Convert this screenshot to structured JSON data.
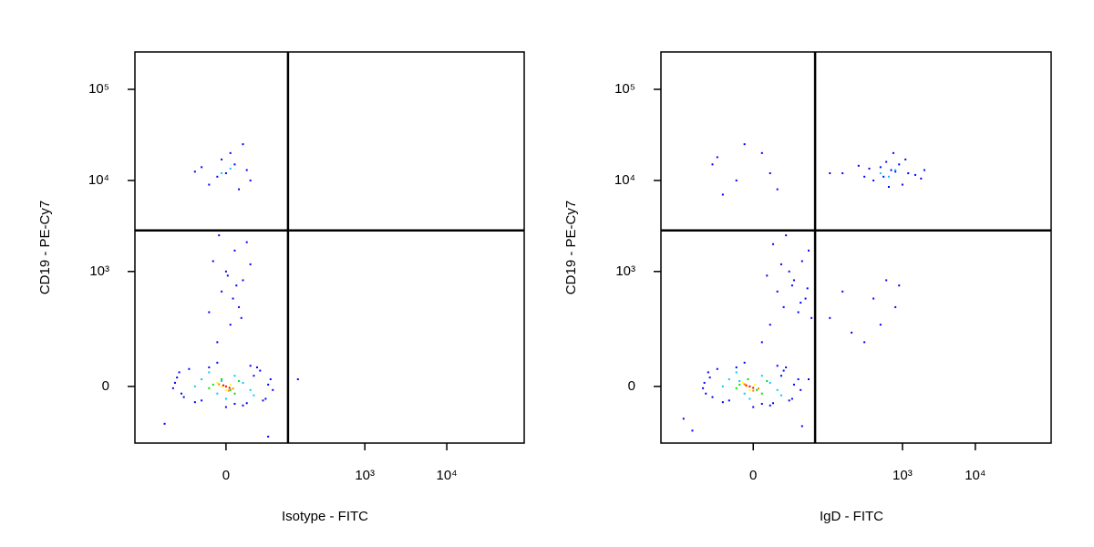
{
  "chart_data": [
    {
      "type": "scatter",
      "xlabel": "Isotype - FITC",
      "ylabel": "CD19 - PE-Cy7",
      "xscale": "asinh",
      "xscale_width": 40.5,
      "yscale": "asinh",
      "yscale_width": 110,
      "xlim": [
        -260,
        88000
      ],
      "ylim": [
        -217,
        257000
      ],
      "xticks": [
        0,
        {
          "value": 1000,
          "label": "10³"
        },
        {
          "value": 10000,
          "label": "10⁴"
        }
      ],
      "yticks": [
        0,
        {
          "value": 1000,
          "label": "10³"
        },
        {
          "value": 10000,
          "label": "10⁴"
        },
        {
          "value": 100000,
          "label": "10⁵"
        }
      ],
      "quadrant": {
        "x": 112,
        "y": 2830
      },
      "series": [
        {
          "color": "#0000ff",
          "x": [
            -80,
            -60,
            -70,
            -40,
            -20,
            10,
            30,
            50,
            65,
            70,
            -85,
            -50,
            20,
            45,
            60,
            -30,
            0,
            35,
            -65,
            55,
            40,
            -10,
            -75,
            25,
            -10,
            5,
            15,
            -5,
            20,
            0,
            -15,
            10,
            25,
            -20,
            8,
            2,
            30,
            -8,
            12,
            18,
            -20,
            0,
            10,
            -10,
            25,
            -30,
            5,
            15,
            -5,
            30,
            -40,
            20,
            150,
            -110,
            60
          ],
          "y": [
            10,
            -30,
            40,
            -45,
            55,
            -50,
            60,
            -40,
            20,
            -10,
            -5,
            50,
            -55,
            45,
            5,
            -40,
            -60,
            30,
            -20,
            -35,
            55,
            70,
            25,
            -48,
            150,
            250,
            400,
            600,
            800,
            1000,
            1300,
            1700,
            2100,
            350,
            500,
            900,
            1200,
            2500,
            700,
            300,
            9000,
            12000,
            15000,
            11000,
            13000,
            14000,
            20000,
            8000,
            17000,
            10000,
            12500,
            25000,
            20,
            -120,
            -180
          ]
        },
        {
          "color": "#00c8ff",
          "x": [
            -30,
            -10,
            10,
            30,
            -40,
            20,
            -20,
            0,
            35,
            -5,
            -5,
            5
          ],
          "y": [
            20,
            -20,
            30,
            -10,
            0,
            10,
            40,
            -35,
            -25,
            15,
            12000,
            13500
          ]
        },
        {
          "color": "#00e000",
          "x": [
            -15,
            5,
            15,
            -20,
            10,
            -5
          ],
          "y": [
            5,
            -10,
            15,
            -5,
            -20,
            20
          ]
        },
        {
          "color": "#ffff00",
          "x": [
            -5,
            5,
            0,
            -10
          ],
          "y": [
            0,
            5,
            -10,
            10
          ]
        },
        {
          "color": "#ff8000",
          "x": [
            -8,
            8,
            3
          ],
          "y": [
            6,
            -6,
            -12
          ]
        },
        {
          "color": "#ff0000",
          "x": [
            0,
            -3,
            4
          ],
          "y": [
            0,
            3,
            -4
          ]
        }
      ]
    },
    {
      "type": "scatter",
      "xlabel": "IgD - FITC",
      "ylabel": "CD19 - PE-Cy7",
      "xscale": "asinh",
      "xscale_width": 17.9,
      "yscale": "asinh",
      "yscale_width": 110,
      "xlim": [
        -165,
        110000
      ],
      "ylim": [
        -217,
        257000
      ],
      "xticks": [
        0,
        {
          "value": 1000,
          "label": "10³"
        },
        {
          "value": 10000,
          "label": "10⁴"
        }
      ],
      "yticks": [
        0,
        {
          "value": 1000,
          "label": "10³"
        },
        {
          "value": 10000,
          "label": "10⁴"
        },
        {
          "value": 100000,
          "label": "10⁵"
        }
      ],
      "quadrant": {
        "x": 62,
        "y": 2830
      },
      "series": [
        {
          "color": "#0000ff",
          "x": [
            -40,
            -30,
            -35,
            -20,
            -10,
            5,
            15,
            25,
            35,
            38,
            -42,
            -25,
            10,
            20,
            30,
            -15,
            0,
            18,
            -38,
            28,
            22,
            -5,
            -33,
            12,
            -80,
            -60,
            40,
            50,
            5,
            10,
            20,
            15,
            30,
            25,
            40,
            50,
            35,
            45,
            8,
            18,
            28,
            55,
            12,
            38,
            48,
            22,
            150,
            300,
            500,
            700,
            900,
            1200,
            1500,
            2000,
            400,
            600,
            800,
            1000,
            250,
            1100,
            650,
            350,
            100,
            1800,
            750,
            550,
            -30,
            -10,
            5,
            -20,
            10,
            -5,
            15,
            -25,
            100,
            200,
            400,
            600,
            800,
            300,
            150,
            900,
            500
          ],
          "y": [
            10,
            -30,
            40,
            -45,
            55,
            -50,
            60,
            -40,
            20,
            -10,
            -5,
            50,
            -55,
            45,
            5,
            -40,
            -60,
            30,
            -20,
            -35,
            55,
            70,
            25,
            -48,
            -100,
            -150,
            -130,
            20,
            150,
            250,
            400,
            600,
            800,
            1000,
            1300,
            1700,
            350,
            500,
            900,
            1200,
            700,
            300,
            2000,
            450,
            650,
            2500,
            12000,
            11000,
            14000,
            13000,
            15000,
            12000,
            11500,
            13000,
            10000,
            16000,
            12500,
            9000,
            14500,
            17000,
            8500,
            13500,
            12000,
            10500,
            20000,
            11000,
            15000,
            10000,
            20000,
            7000,
            12000,
            25000,
            8000,
            18000,
            300,
            200,
            500,
            800,
            400,
            150,
            600,
            700,
            250
          ]
        },
        {
          "color": "#00c8ff",
          "x": [
            -15,
            -5,
            5,
            15,
            -20,
            10,
            -10,
            -2,
            18,
            -8,
            500,
            800,
            650
          ],
          "y": [
            20,
            -20,
            30,
            -10,
            0,
            10,
            40,
            -35,
            -25,
            15,
            12000,
            13000,
            11000
          ]
        },
        {
          "color": "#00e000",
          "x": [
            -8,
            2,
            8,
            -10,
            5,
            -3
          ],
          "y": [
            5,
            -10,
            15,
            -5,
            -20,
            20
          ]
        },
        {
          "color": "#ffff00",
          "x": [
            -4,
            1,
            -2,
            -6
          ],
          "y": [
            0,
            5,
            -10,
            10
          ]
        },
        {
          "color": "#ff8000",
          "x": [
            -5,
            3,
            0
          ],
          "y": [
            6,
            -6,
            -12
          ]
        },
        {
          "color": "#ff0000",
          "x": [
            -2,
            -4,
            0
          ],
          "y": [
            0,
            3,
            -4
          ]
        }
      ]
    }
  ]
}
